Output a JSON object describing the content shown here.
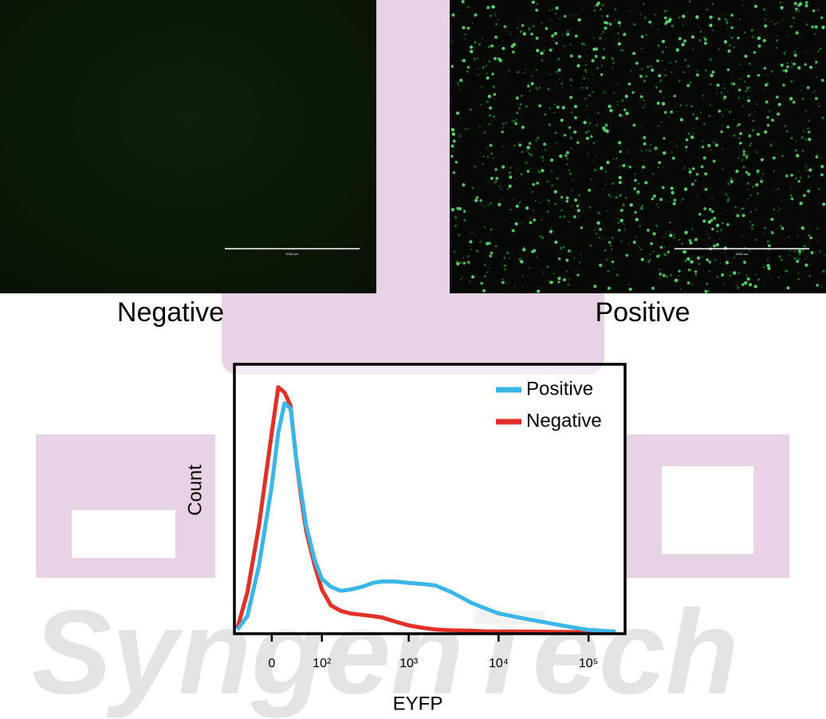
{
  "images": [
    {
      "label": "Negative",
      "scale_label": "1000 um"
    },
    {
      "label": "Positive",
      "scale_label": "1000 um"
    }
  ],
  "watermark": "SyngenTech",
  "chart_data": {
    "type": "line",
    "x_label": "EYFP",
    "y_label": "Count",
    "xscale": "biexponential",
    "xlim": [
      -63,
      245000
    ],
    "ylim": [
      0,
      100
    ],
    "xticks": [
      0,
      {
        "value": 100,
        "label": "10²"
      },
      {
        "value": 1000,
        "label": "10³"
      },
      {
        "value": 10000,
        "label": "10⁴"
      },
      {
        "value": 100000,
        "label": "10⁵"
      }
    ],
    "legend": "upper right",
    "x": [
      -60,
      -40,
      -20,
      0,
      10,
      20,
      30,
      40,
      50,
      60,
      80,
      100,
      130,
      170,
      220,
      300,
      400,
      500,
      700,
      1000,
      1500,
      2000,
      3000,
      5000,
      7000,
      10000,
      20000,
      50000,
      100000,
      200000
    ],
    "series": [
      {
        "name": "Positive",
        "color": "#3bb6e6",
        "values": [
          1,
          6,
          25,
          55,
          75,
          86,
          84,
          65,
          52,
          40,
          27,
          20,
          17,
          15.5,
          16,
          17,
          18.5,
          19,
          19,
          18.5,
          18,
          17.5,
          15,
          11,
          9,
          7,
          5,
          2.5,
          0.8,
          0.2
        ]
      },
      {
        "name": "Negative",
        "color": "#e03028",
        "values": [
          1.5,
          15,
          40,
          75,
          92,
          90,
          85,
          65,
          50,
          38,
          25,
          16,
          10,
          8,
          7,
          6.5,
          6,
          5.5,
          4,
          2.5,
          1.5,
          1,
          0.7,
          0.5,
          0.3,
          0.2,
          0.2,
          0.1,
          0,
          0
        ]
      }
    ]
  }
}
